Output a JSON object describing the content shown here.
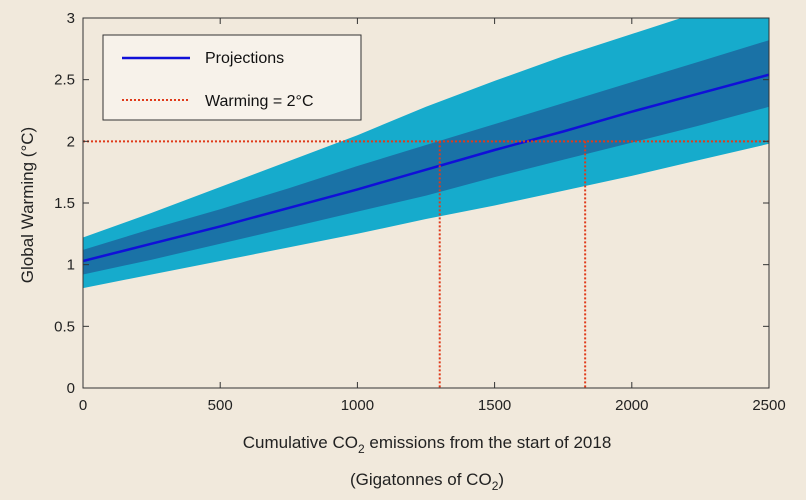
{
  "chart_data": {
    "type": "line",
    "xlabel_main": "Cumulative CO",
    "xlabel_sub": "2",
    "xlabel_rest": " emissions from the start of 2018",
    "xlabel2_main": "(Gigatonnes of CO",
    "xlabel2_sub": "2",
    "xlabel2_rest": ")",
    "ylabel": "Global Warming (°C)",
    "xlim": [
      0,
      2500
    ],
    "ylim": [
      0,
      3
    ],
    "xticks": [
      0,
      500,
      1000,
      1500,
      2000,
      2500
    ],
    "xtick_labels": [
      "0",
      "500",
      "1000",
      "1500",
      "2000",
      "2500"
    ],
    "yticks": [
      0,
      0.5,
      1,
      1.5,
      2,
      2.5,
      3
    ],
    "ytick_labels": [
      "0",
      "0.5",
      "1",
      "1.5",
      "2",
      "2.5",
      "3"
    ],
    "grid": false,
    "legend_position": "top-left",
    "x": [
      0,
      250,
      500,
      750,
      1000,
      1250,
      1500,
      1750,
      2000,
      2250,
      2500
    ],
    "series": [
      {
        "name": "Projections",
        "color": "#1010d8",
        "values": [
          1.03,
          1.17,
          1.31,
          1.46,
          1.61,
          1.77,
          1.93,
          2.08,
          2.24,
          2.39,
          2.54
        ]
      },
      {
        "name": "Warming = 2°C",
        "color": "#e03a1a",
        "style": "dotted",
        "values": [
          2,
          2,
          2,
          2,
          2,
          2,
          2,
          2,
          2,
          2,
          2
        ]
      }
    ],
    "inner_band": {
      "color": "#1a72a6",
      "lower": [
        0.92,
        1.04,
        1.17,
        1.3,
        1.43,
        1.56,
        1.71,
        1.85,
        1.99,
        2.13,
        2.28
      ],
      "upper": [
        1.12,
        1.29,
        1.45,
        1.62,
        1.8,
        1.97,
        2.14,
        2.31,
        2.48,
        2.65,
        2.82
      ]
    },
    "outer_band": {
      "color": "#16abcc",
      "lower": [
        0.81,
        0.92,
        1.03,
        1.14,
        1.25,
        1.37,
        1.48,
        1.6,
        1.72,
        1.85,
        1.98
      ],
      "upper": [
        1.22,
        1.42,
        1.63,
        1.84,
        2.05,
        2.28,
        2.49,
        2.69,
        2.87,
        3.05,
        3.22
      ]
    },
    "crossing_x": [
      1300,
      1830
    ],
    "threshold": 2,
    "colors": {
      "background": "#f1e9dc",
      "axes_bg": "#f1e9dc",
      "axis": "#333333"
    }
  }
}
